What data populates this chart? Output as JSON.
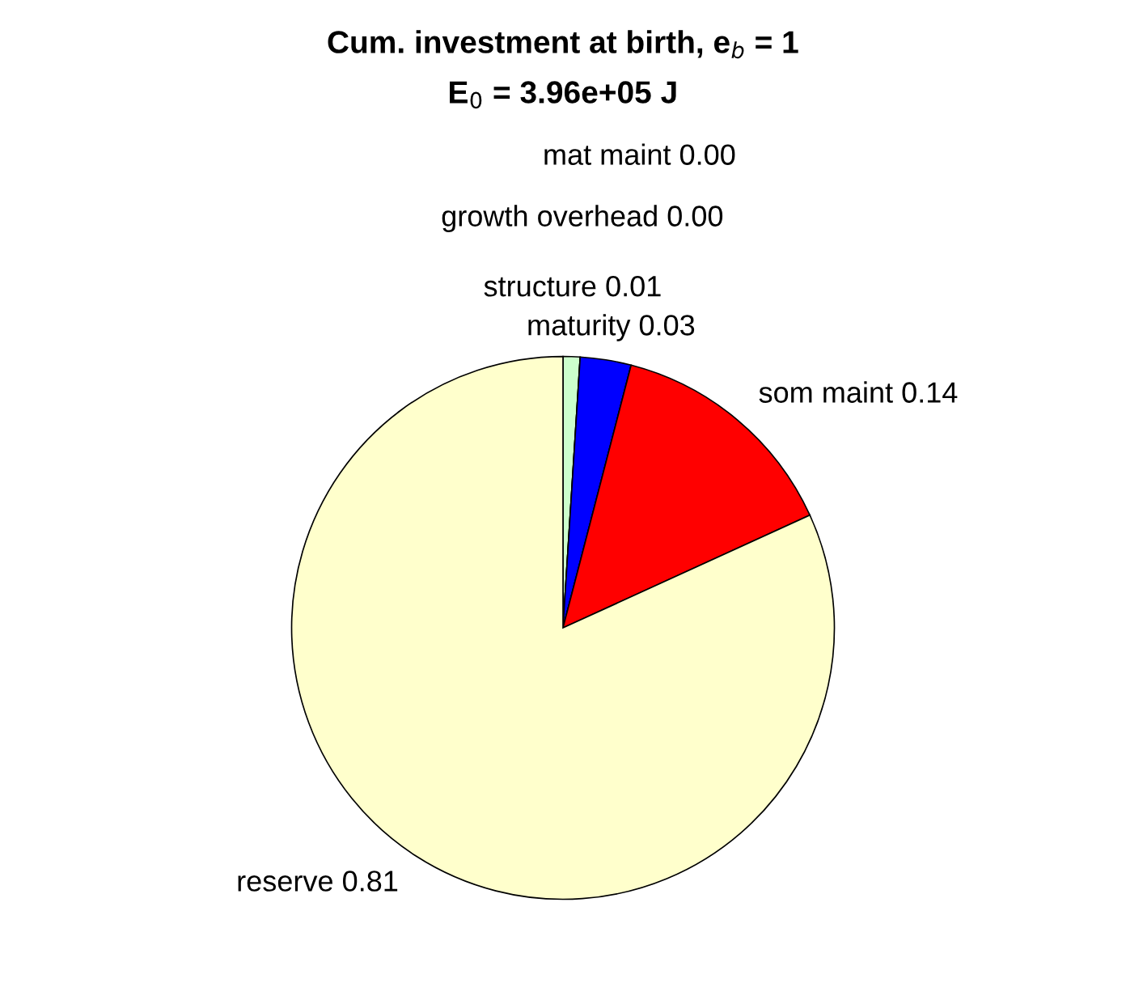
{
  "chart_data": {
    "type": "pie",
    "title": "Cum. investment at birth, e$_{b}$ = 1",
    "subtitle": "E$_{0}$ = 3.96e+05 J",
    "categories": [
      "structure",
      "growth overhead",
      "maturity",
      "mat maint",
      "som maint",
      "reserve"
    ],
    "values": [
      0.01,
      0.0,
      0.03,
      0.0,
      0.14,
      0.81
    ],
    "value_labels": [
      "0.01",
      "0.00",
      "0.03",
      "0.00",
      "0.14",
      "0.81"
    ],
    "colors": [
      "#ccffcc",
      "#00ff00",
      "#0000ff",
      "#ffffff",
      "#ff0000",
      "#ffffcc"
    ],
    "legend": false
  }
}
